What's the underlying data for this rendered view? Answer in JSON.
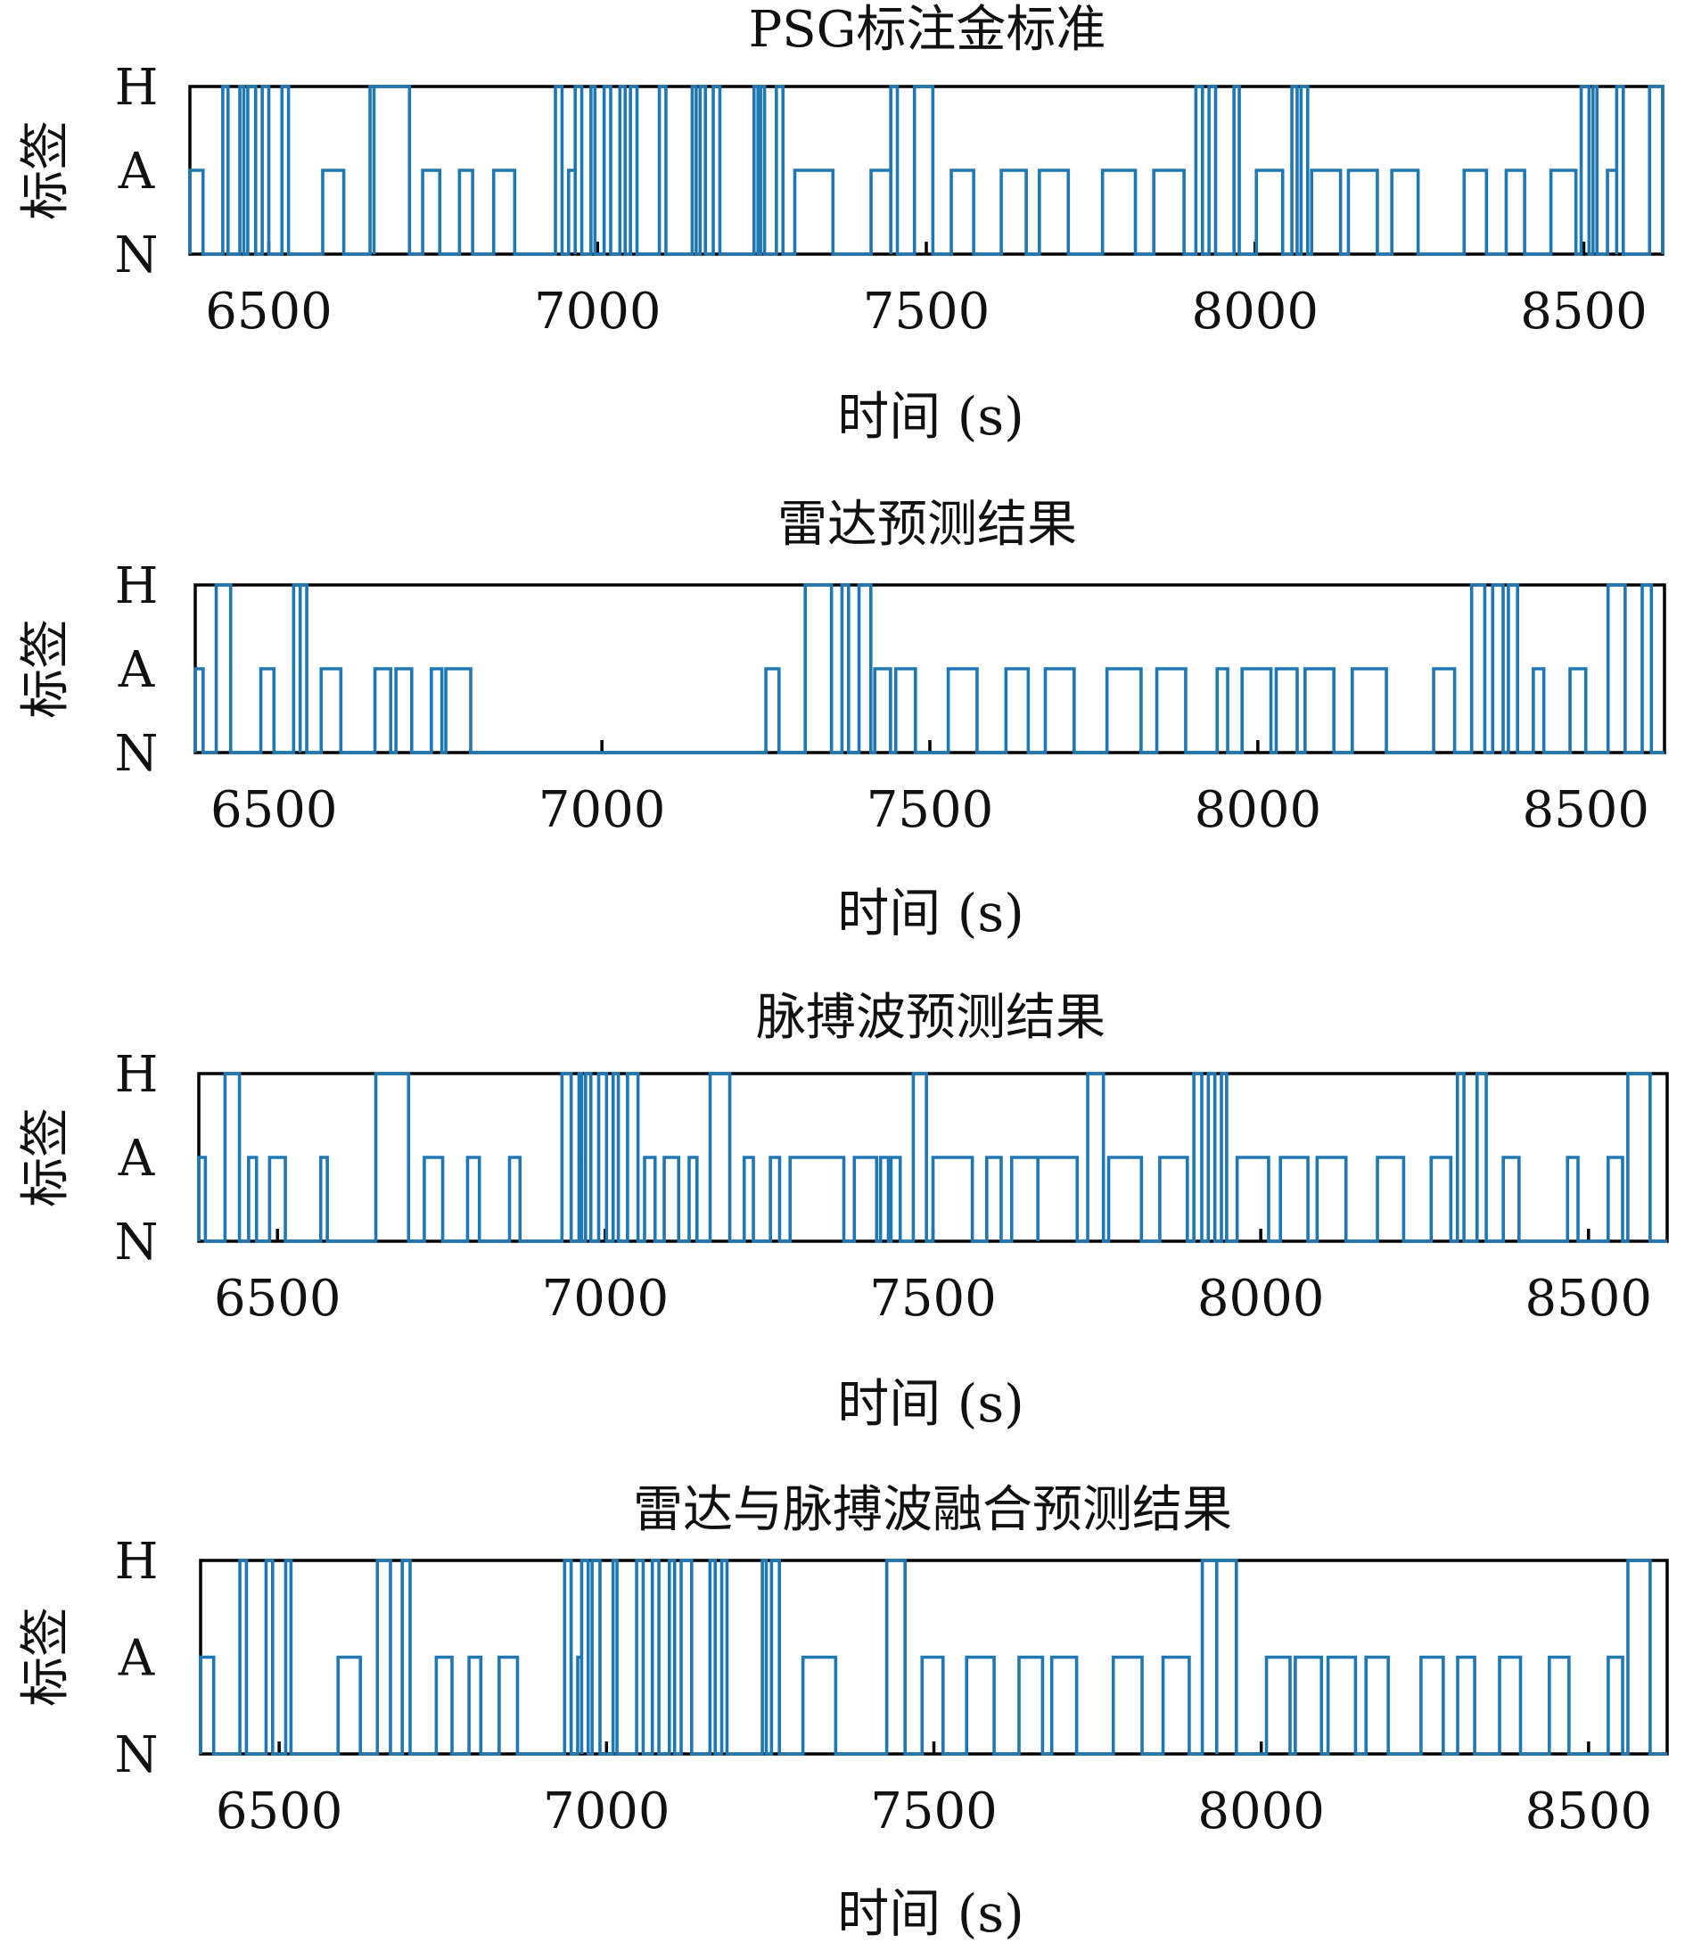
{
  "chart_data": [
    {
      "type": "line",
      "title": "PSG标注金标准",
      "xlabel": "时间 (s)",
      "ylabel": "标签",
      "xlim": [
        6380,
        8620
      ],
      "xticks": [
        6500,
        7000,
        7500,
        8000,
        8500
      ],
      "xtick_labels": [
        "6500",
        "7000",
        "7500",
        "8000",
        "8500"
      ],
      "yticks": [
        "N",
        "A",
        "H"
      ],
      "color": "#1f77b4",
      "grid": false,
      "events": [
        {
          "start": 6380,
          "end": 6400,
          "level": "A"
        },
        {
          "start": 6430,
          "end": 6438,
          "level": "H"
        },
        {
          "start": 6456,
          "end": 6462,
          "level": "H"
        },
        {
          "start": 6468,
          "end": 6480,
          "level": "H"
        },
        {
          "start": 6490,
          "end": 6500,
          "level": "H"
        },
        {
          "start": 6520,
          "end": 6530,
          "level": "H"
        },
        {
          "start": 6582,
          "end": 6614,
          "level": "A"
        },
        {
          "start": 6654,
          "end": 6660,
          "level": "H"
        },
        {
          "start": 6660,
          "end": 6714,
          "level": "H"
        },
        {
          "start": 6734,
          "end": 6760,
          "level": "A"
        },
        {
          "start": 6790,
          "end": 6810,
          "level": "A"
        },
        {
          "start": 6842,
          "end": 6874,
          "level": "A"
        },
        {
          "start": 6936,
          "end": 6946,
          "level": "H"
        },
        {
          "start": 6956,
          "end": 6966,
          "level": "A"
        },
        {
          "start": 6966,
          "end": 6976,
          "level": "H"
        },
        {
          "start": 6990,
          "end": 6996,
          "level": "H"
        },
        {
          "start": 7010,
          "end": 7020,
          "level": "H"
        },
        {
          "start": 7034,
          "end": 7042,
          "level": "H"
        },
        {
          "start": 7050,
          "end": 7060,
          "level": "H"
        },
        {
          "start": 7094,
          "end": 7104,
          "level": "H"
        },
        {
          "start": 7144,
          "end": 7150,
          "level": "H"
        },
        {
          "start": 7156,
          "end": 7164,
          "level": "H"
        },
        {
          "start": 7176,
          "end": 7186,
          "level": "H"
        },
        {
          "start": 7238,
          "end": 7244,
          "level": "H"
        },
        {
          "start": 7248,
          "end": 7254,
          "level": "H"
        },
        {
          "start": 7272,
          "end": 7282,
          "level": "H"
        },
        {
          "start": 7300,
          "end": 7358,
          "level": "A"
        },
        {
          "start": 7416,
          "end": 7446,
          "level": "A"
        },
        {
          "start": 7446,
          "end": 7456,
          "level": "H"
        },
        {
          "start": 7482,
          "end": 7510,
          "level": "H"
        },
        {
          "start": 7538,
          "end": 7572,
          "level": "A"
        },
        {
          "start": 7614,
          "end": 7652,
          "level": "A"
        },
        {
          "start": 7672,
          "end": 7716,
          "level": "A"
        },
        {
          "start": 7768,
          "end": 7818,
          "level": "A"
        },
        {
          "start": 7846,
          "end": 7892,
          "level": "A"
        },
        {
          "start": 7910,
          "end": 7920,
          "level": "H"
        },
        {
          "start": 7930,
          "end": 7940,
          "level": "H"
        },
        {
          "start": 7968,
          "end": 7976,
          "level": "H"
        },
        {
          "start": 8002,
          "end": 8042,
          "level": "A"
        },
        {
          "start": 8056,
          "end": 8064,
          "level": "H"
        },
        {
          "start": 8070,
          "end": 8080,
          "level": "H"
        },
        {
          "start": 8086,
          "end": 8130,
          "level": "A"
        },
        {
          "start": 8142,
          "end": 8186,
          "level": "A"
        },
        {
          "start": 8208,
          "end": 8248,
          "level": "A"
        },
        {
          "start": 8318,
          "end": 8352,
          "level": "A"
        },
        {
          "start": 8382,
          "end": 8410,
          "level": "A"
        },
        {
          "start": 8450,
          "end": 8488,
          "level": "A"
        },
        {
          "start": 8496,
          "end": 8508,
          "level": "H"
        },
        {
          "start": 8514,
          "end": 8520,
          "level": "H"
        },
        {
          "start": 8536,
          "end": 8550,
          "level": "A"
        },
        {
          "start": 8550,
          "end": 8560,
          "level": "H"
        },
        {
          "start": 8600,
          "end": 8620,
          "level": "H"
        }
      ]
    },
    {
      "type": "line",
      "title": "雷达预测结果",
      "xlabel": "时间 (s)",
      "ylabel": "标签",
      "xlim": [
        6380,
        8620
      ],
      "xticks": [
        6500,
        7000,
        7500,
        8000,
        8500
      ],
      "xtick_labels": [
        "6500",
        "7000",
        "7500",
        "8000",
        "8500"
      ],
      "yticks": [
        "N",
        "A",
        "H"
      ],
      "color": "#1f77b4",
      "grid": false,
      "events": [
        {
          "start": 6380,
          "end": 6392,
          "level": "A"
        },
        {
          "start": 6412,
          "end": 6434,
          "level": "H"
        },
        {
          "start": 6480,
          "end": 6500,
          "level": "A"
        },
        {
          "start": 6530,
          "end": 6540,
          "level": "H"
        },
        {
          "start": 6540,
          "end": 6550,
          "level": "H"
        },
        {
          "start": 6572,
          "end": 6602,
          "level": "A"
        },
        {
          "start": 6654,
          "end": 6678,
          "level": "A"
        },
        {
          "start": 6686,
          "end": 6710,
          "level": "A"
        },
        {
          "start": 6740,
          "end": 6756,
          "level": "A"
        },
        {
          "start": 6762,
          "end": 6800,
          "level": "A"
        },
        {
          "start": 7250,
          "end": 7270,
          "level": "A"
        },
        {
          "start": 7310,
          "end": 7350,
          "level": "H"
        },
        {
          "start": 7366,
          "end": 7376,
          "level": "H"
        },
        {
          "start": 7392,
          "end": 7410,
          "level": "H"
        },
        {
          "start": 7416,
          "end": 7440,
          "level": "A"
        },
        {
          "start": 7448,
          "end": 7478,
          "level": "A"
        },
        {
          "start": 7528,
          "end": 7572,
          "level": "A"
        },
        {
          "start": 7616,
          "end": 7650,
          "level": "A"
        },
        {
          "start": 7676,
          "end": 7720,
          "level": "A"
        },
        {
          "start": 7770,
          "end": 7822,
          "level": "A"
        },
        {
          "start": 7846,
          "end": 7890,
          "level": "A"
        },
        {
          "start": 7938,
          "end": 7954,
          "level": "A"
        },
        {
          "start": 7976,
          "end": 8020,
          "level": "A"
        },
        {
          "start": 8028,
          "end": 8060,
          "level": "A"
        },
        {
          "start": 8072,
          "end": 8116,
          "level": "A"
        },
        {
          "start": 8144,
          "end": 8196,
          "level": "A"
        },
        {
          "start": 8268,
          "end": 8300,
          "level": "A"
        },
        {
          "start": 8326,
          "end": 8346,
          "level": "H"
        },
        {
          "start": 8358,
          "end": 8374,
          "level": "H"
        },
        {
          "start": 8382,
          "end": 8396,
          "level": "H"
        },
        {
          "start": 8420,
          "end": 8436,
          "level": "A"
        },
        {
          "start": 8476,
          "end": 8500,
          "level": "A"
        },
        {
          "start": 8534,
          "end": 8560,
          "level": "H"
        },
        {
          "start": 8586,
          "end": 8600,
          "level": "H"
        }
      ]
    },
    {
      "type": "line",
      "title": "脉搏波预测结果",
      "xlabel": "时间 (s)",
      "ylabel": "标签",
      "xlim": [
        6380,
        8620
      ],
      "xticks": [
        6500,
        7000,
        7500,
        8000,
        8500
      ],
      "xtick_labels": [
        "6500",
        "7000",
        "7500",
        "8000",
        "8500"
      ],
      "yticks": [
        "N",
        "A",
        "H"
      ],
      "color": "#1f77b4",
      "grid": false,
      "events": [
        {
          "start": 6380,
          "end": 6390,
          "level": "A"
        },
        {
          "start": 6420,
          "end": 6442,
          "level": "H"
        },
        {
          "start": 6456,
          "end": 6468,
          "level": "A"
        },
        {
          "start": 6488,
          "end": 6512,
          "level": "A"
        },
        {
          "start": 6566,
          "end": 6576,
          "level": "A"
        },
        {
          "start": 6650,
          "end": 6700,
          "level": "H"
        },
        {
          "start": 6724,
          "end": 6752,
          "level": "A"
        },
        {
          "start": 6790,
          "end": 6808,
          "level": "A"
        },
        {
          "start": 6854,
          "end": 6870,
          "level": "A"
        },
        {
          "start": 6934,
          "end": 6948,
          "level": "H"
        },
        {
          "start": 6960,
          "end": 6964,
          "level": "H"
        },
        {
          "start": 6970,
          "end": 6978,
          "level": "H"
        },
        {
          "start": 6990,
          "end": 7002,
          "level": "H"
        },
        {
          "start": 7012,
          "end": 7020,
          "level": "H"
        },
        {
          "start": 7034,
          "end": 7050,
          "level": "H"
        },
        {
          "start": 7060,
          "end": 7076,
          "level": "A"
        },
        {
          "start": 7090,
          "end": 7112,
          "level": "A"
        },
        {
          "start": 7128,
          "end": 7140,
          "level": "A"
        },
        {
          "start": 7160,
          "end": 7190,
          "level": "H"
        },
        {
          "start": 7212,
          "end": 7226,
          "level": "A"
        },
        {
          "start": 7252,
          "end": 7266,
          "level": "A"
        },
        {
          "start": 7282,
          "end": 7364,
          "level": "A"
        },
        {
          "start": 7380,
          "end": 7414,
          "level": "A"
        },
        {
          "start": 7420,
          "end": 7432,
          "level": "A"
        },
        {
          "start": 7436,
          "end": 7450,
          "level": "A"
        },
        {
          "start": 7470,
          "end": 7490,
          "level": "H"
        },
        {
          "start": 7500,
          "end": 7560,
          "level": "A"
        },
        {
          "start": 7582,
          "end": 7604,
          "level": "A"
        },
        {
          "start": 7620,
          "end": 7660,
          "level": "A"
        },
        {
          "start": 7660,
          "end": 7720,
          "level": "A"
        },
        {
          "start": 7736,
          "end": 7760,
          "level": "H"
        },
        {
          "start": 7768,
          "end": 7818,
          "level": "A"
        },
        {
          "start": 7846,
          "end": 7888,
          "level": "A"
        },
        {
          "start": 7898,
          "end": 7910,
          "level": "H"
        },
        {
          "start": 7920,
          "end": 7930,
          "level": "H"
        },
        {
          "start": 7940,
          "end": 7948,
          "level": "H"
        },
        {
          "start": 7964,
          "end": 8012,
          "level": "A"
        },
        {
          "start": 8030,
          "end": 8072,
          "level": "A"
        },
        {
          "start": 8086,
          "end": 8130,
          "level": "A"
        },
        {
          "start": 8178,
          "end": 8218,
          "level": "A"
        },
        {
          "start": 8260,
          "end": 8290,
          "level": "A"
        },
        {
          "start": 8300,
          "end": 8310,
          "level": "H"
        },
        {
          "start": 8330,
          "end": 8344,
          "level": "H"
        },
        {
          "start": 8370,
          "end": 8394,
          "level": "A"
        },
        {
          "start": 8468,
          "end": 8484,
          "level": "A"
        },
        {
          "start": 8530,
          "end": 8552,
          "level": "A"
        },
        {
          "start": 8560,
          "end": 8594,
          "level": "H"
        }
      ]
    },
    {
      "type": "line",
      "title": "雷达与脉搏波融合预测结果",
      "xlabel": "时间 (s)",
      "ylabel": "标签",
      "xlim": [
        6380,
        8620
      ],
      "xticks": [
        6500,
        7000,
        7500,
        8000,
        8500
      ],
      "xtick_labels": [
        "6500",
        "7000",
        "7500",
        "8000",
        "8500"
      ],
      "yticks": [
        "N",
        "A",
        "H"
      ],
      "color": "#1f77b4",
      "grid": false,
      "events": [
        {
          "start": 6380,
          "end": 6400,
          "level": "A"
        },
        {
          "start": 6440,
          "end": 6450,
          "level": "H"
        },
        {
          "start": 6480,
          "end": 6490,
          "level": "H"
        },
        {
          "start": 6510,
          "end": 6518,
          "level": "H"
        },
        {
          "start": 6590,
          "end": 6624,
          "level": "A"
        },
        {
          "start": 6650,
          "end": 6670,
          "level": "H"
        },
        {
          "start": 6688,
          "end": 6700,
          "level": "H"
        },
        {
          "start": 6740,
          "end": 6764,
          "level": "A"
        },
        {
          "start": 6790,
          "end": 6808,
          "level": "A"
        },
        {
          "start": 6836,
          "end": 6864,
          "level": "A"
        },
        {
          "start": 6936,
          "end": 6946,
          "level": "H"
        },
        {
          "start": 6956,
          "end": 6962,
          "level": "A"
        },
        {
          "start": 6962,
          "end": 6972,
          "level": "H"
        },
        {
          "start": 6978,
          "end": 6990,
          "level": "H"
        },
        {
          "start": 7010,
          "end": 7016,
          "level": "H"
        },
        {
          "start": 7046,
          "end": 7056,
          "level": "H"
        },
        {
          "start": 7070,
          "end": 7080,
          "level": "H"
        },
        {
          "start": 7096,
          "end": 7104,
          "level": "H"
        },
        {
          "start": 7114,
          "end": 7130,
          "level": "H"
        },
        {
          "start": 7158,
          "end": 7166,
          "level": "H"
        },
        {
          "start": 7176,
          "end": 7184,
          "level": "H"
        },
        {
          "start": 7238,
          "end": 7244,
          "level": "H"
        },
        {
          "start": 7252,
          "end": 7264,
          "level": "H"
        },
        {
          "start": 7300,
          "end": 7350,
          "level": "A"
        },
        {
          "start": 7428,
          "end": 7456,
          "level": "H"
        },
        {
          "start": 7482,
          "end": 7514,
          "level": "A"
        },
        {
          "start": 7550,
          "end": 7592,
          "level": "A"
        },
        {
          "start": 7630,
          "end": 7666,
          "level": "A"
        },
        {
          "start": 7680,
          "end": 7718,
          "level": "A"
        },
        {
          "start": 7774,
          "end": 7818,
          "level": "A"
        },
        {
          "start": 7850,
          "end": 7890,
          "level": "A"
        },
        {
          "start": 7910,
          "end": 7932,
          "level": "H"
        },
        {
          "start": 7932,
          "end": 7962,
          "level": "H"
        },
        {
          "start": 8008,
          "end": 8044,
          "level": "A"
        },
        {
          "start": 8052,
          "end": 8092,
          "level": "A"
        },
        {
          "start": 8102,
          "end": 8144,
          "level": "A"
        },
        {
          "start": 8160,
          "end": 8194,
          "level": "A"
        },
        {
          "start": 8244,
          "end": 8278,
          "level": "A"
        },
        {
          "start": 8300,
          "end": 8326,
          "level": "A"
        },
        {
          "start": 8364,
          "end": 8396,
          "level": "A"
        },
        {
          "start": 8440,
          "end": 8470,
          "level": "A"
        },
        {
          "start": 8530,
          "end": 8552,
          "level": "A"
        },
        {
          "start": 8560,
          "end": 8594,
          "level": "H"
        }
      ]
    }
  ]
}
